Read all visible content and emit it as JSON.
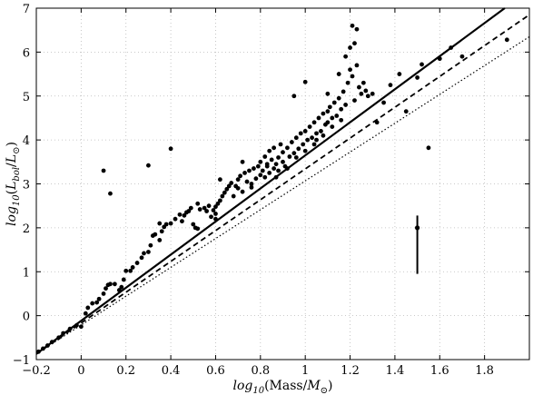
{
  "chart_data": {
    "type": "scatter",
    "title": "",
    "xlabel": "log10(Mass/M⊙)",
    "ylabel": "log10(Lbol/L⊙)",
    "xlabel_parts": {
      "fn": "log",
      "sub": "10",
      "text": "(Mass/",
      "sym": "M",
      "symsub": "⊙",
      "close": ")"
    },
    "ylabel_parts": {
      "fn": "log",
      "sub": "10",
      "open": "(",
      "sym": "L",
      "symsub": "bol",
      "sep": "/",
      "sym2": "L",
      "sym2sub": "⊙",
      "close": ")"
    },
    "xlim": [
      -0.2,
      2.0
    ],
    "ylim": [
      -1,
      7
    ],
    "grid": true,
    "x_ticks": [
      -0.2,
      0,
      0.2,
      0.4,
      0.6,
      0.8,
      1,
      1.2,
      1.4,
      1.6,
      1.8
    ],
    "x_tick_labels": [
      "−0.2",
      "0",
      "0.2",
      "0.4",
      "0.6",
      "0.8",
      "1",
      "1.2",
      "1.4",
      "1.6",
      "1.8"
    ],
    "y_ticks": [
      -1,
      0,
      1,
      2,
      3,
      4,
      5,
      6,
      7
    ],
    "y_tick_labels": [
      "−1",
      "0",
      "1",
      "2",
      "3",
      "4",
      "5",
      "6",
      "7"
    ],
    "lines": [
      {
        "style": "solid",
        "x": [
          -0.2,
          1.89
        ],
        "y": [
          -0.87,
          7.0
        ]
      },
      {
        "style": "dashed",
        "x": [
          -0.2,
          2.0
        ],
        "y": [
          -0.87,
          6.85
        ]
      },
      {
        "style": "dotted",
        "x": [
          -0.2,
          2.0
        ],
        "y": [
          -0.87,
          6.35
        ]
      }
    ],
    "errorbar": {
      "x": 1.5,
      "y": 2.0,
      "ylow": 0.95,
      "yhigh": 2.28
    },
    "points": [
      [
        -0.19,
        -0.82
      ],
      [
        -0.17,
        -0.75
      ],
      [
        -0.15,
        -0.68
      ],
      [
        -0.13,
        -0.6
      ],
      [
        -0.1,
        -0.5
      ],
      [
        -0.08,
        -0.4
      ],
      [
        -0.05,
        -0.3
      ],
      [
        -0.02,
        -0.22
      ],
      [
        0.0,
        -0.25
      ],
      [
        0.02,
        0.05
      ],
      [
        0.03,
        0.18
      ],
      [
        0.05,
        0.28
      ],
      [
        0.07,
        0.3
      ],
      [
        0.08,
        0.38
      ],
      [
        0.1,
        0.5
      ],
      [
        0.11,
        0.62
      ],
      [
        0.12,
        0.7
      ],
      [
        0.13,
        0.72
      ],
      [
        0.15,
        0.72
      ],
      [
        0.17,
        0.58
      ],
      [
        0.18,
        0.65
      ],
      [
        0.19,
        0.82
      ],
      [
        0.2,
        1.02
      ],
      [
        0.22,
        1.02
      ],
      [
        0.23,
        1.1
      ],
      [
        0.25,
        1.2
      ],
      [
        0.27,
        1.32
      ],
      [
        0.28,
        1.42
      ],
      [
        0.3,
        1.45
      ],
      [
        0.31,
        1.6
      ],
      [
        0.32,
        1.82
      ],
      [
        0.33,
        1.85
      ],
      [
        0.35,
        1.72
      ],
      [
        0.36,
        1.92
      ],
      [
        0.37,
        2.02
      ],
      [
        0.38,
        2.08
      ],
      [
        0.4,
        2.1
      ],
      [
        0.42,
        2.2
      ],
      [
        0.44,
        2.3
      ],
      [
        0.46,
        2.28
      ],
      [
        0.47,
        2.35
      ],
      [
        0.48,
        2.38
      ],
      [
        0.49,
        2.45
      ],
      [
        0.5,
        2.08
      ],
      [
        0.51,
        2.0
      ],
      [
        0.52,
        1.98
      ],
      [
        0.53,
        2.42
      ],
      [
        0.55,
        2.45
      ],
      [
        0.56,
        2.38
      ],
      [
        0.57,
        2.5
      ],
      [
        0.59,
        2.4
      ],
      [
        0.6,
        2.2
      ],
      [
        0.6,
        2.32
      ],
      [
        0.6,
        2.48
      ],
      [
        0.61,
        2.55
      ],
      [
        0.62,
        2.62
      ],
      [
        0.63,
        2.72
      ],
      [
        0.64,
        2.8
      ],
      [
        0.65,
        2.88
      ],
      [
        0.66,
        2.95
      ],
      [
        0.67,
        3.02
      ],
      [
        0.68,
        2.72
      ],
      [
        0.69,
        2.95
      ],
      [
        0.7,
        3.1
      ],
      [
        0.7,
        2.9
      ],
      [
        0.71,
        3.18
      ],
      [
        0.72,
        2.82
      ],
      [
        0.73,
        3.25
      ],
      [
        0.74,
        3.05
      ],
      [
        0.75,
        3.3
      ],
      [
        0.76,
        2.92
      ],
      [
        0.77,
        3.35
      ],
      [
        0.78,
        3.12
      ],
      [
        0.79,
        3.4
      ],
      [
        0.8,
        3.2
      ],
      [
        0.8,
        3.5
      ],
      [
        0.81,
        3.3
      ],
      [
        0.82,
        3.62
      ],
      [
        0.82,
        3.15
      ],
      [
        0.83,
        3.45
      ],
      [
        0.84,
        3.75
      ],
      [
        0.84,
        3.25
      ],
      [
        0.85,
        3.55
      ],
      [
        0.86,
        3.35
      ],
      [
        0.86,
        3.82
      ],
      [
        0.87,
        3.45
      ],
      [
        0.88,
        3.6
      ],
      [
        0.88,
        3.3
      ],
      [
        0.89,
        3.9
      ],
      [
        0.9,
        3.5
      ],
      [
        0.9,
        3.72
      ],
      [
        0.91,
        3.4
      ],
      [
        0.92,
        3.82
      ],
      [
        0.93,
        3.62
      ],
      [
        0.94,
        3.95
      ],
      [
        0.95,
        3.7
      ],
      [
        0.96,
        4.05
      ],
      [
        0.97,
        3.8
      ],
      [
        0.98,
        4.15
      ],
      [
        0.99,
        3.9
      ],
      [
        1.0,
        4.2
      ],
      [
        1.01,
        4.0
      ],
      [
        1.02,
        4.3
      ],
      [
        1.03,
        4.05
      ],
      [
        1.04,
        4.4
      ],
      [
        1.05,
        4.15
      ],
      [
        1.06,
        4.5
      ],
      [
        1.07,
        4.2
      ],
      [
        1.08,
        4.6
      ],
      [
        1.09,
        4.35
      ],
      [
        1.1,
        4.65
      ],
      [
        1.1,
        4.4
      ],
      [
        1.11,
        4.75
      ],
      [
        1.12,
        4.5
      ],
      [
        1.13,
        4.85
      ],
      [
        1.14,
        4.55
      ],
      [
        1.15,
        4.95
      ],
      [
        1.16,
        4.7
      ],
      [
        1.17,
        5.1
      ],
      [
        1.18,
        4.8
      ],
      [
        1.19,
        5.3
      ],
      [
        1.2,
        5.6
      ],
      [
        1.21,
        5.45
      ],
      [
        1.22,
        4.9
      ],
      [
        1.23,
        5.7
      ],
      [
        1.24,
        5.2
      ],
      [
        1.25,
        5.05
      ],
      [
        0.95,
        5.0
      ],
      [
        1.0,
        5.32
      ],
      [
        1.05,
        4.0
      ],
      [
        1.1,
        5.05
      ],
      [
        1.15,
        5.5
      ],
      [
        1.2,
        6.1
      ],
      [
        1.21,
        6.6
      ],
      [
        1.23,
        6.52
      ],
      [
        1.18,
        5.9
      ],
      [
        1.22,
        6.2
      ],
      [
        1.26,
        5.3
      ],
      [
        1.27,
        5.12
      ],
      [
        1.28,
        5.0
      ],
      [
        1.3,
        5.05
      ],
      [
        1.32,
        4.4
      ],
      [
        1.35,
        4.85
      ],
      [
        1.38,
        5.25
      ],
      [
        1.42,
        5.5
      ],
      [
        1.45,
        4.65
      ],
      [
        1.5,
        5.42
      ],
      [
        1.52,
        5.72
      ],
      [
        1.55,
        3.82
      ],
      [
        1.6,
        5.85
      ],
      [
        1.65,
        6.1
      ],
      [
        1.7,
        5.9
      ],
      [
        1.9,
        6.28
      ],
      [
        0.1,
        3.3
      ],
      [
        0.13,
        2.78
      ],
      [
        0.3,
        3.42
      ],
      [
        0.4,
        3.8
      ],
      [
        0.72,
        3.5
      ],
      [
        0.62,
        3.1
      ],
      [
        0.58,
        2.25
      ],
      [
        0.45,
        2.15
      ],
      [
        0.35,
        2.1
      ],
      [
        0.52,
        2.55
      ],
      [
        0.76,
        3.0
      ],
      [
        0.83,
        3.4
      ],
      [
        0.87,
        3.15
      ],
      [
        0.92,
        3.35
      ],
      [
        0.96,
        3.6
      ],
      [
        1.0,
        3.75
      ],
      [
        1.04,
        3.9
      ],
      [
        1.08,
        4.1
      ],
      [
        1.12,
        4.3
      ],
      [
        1.16,
        4.45
      ]
    ]
  }
}
